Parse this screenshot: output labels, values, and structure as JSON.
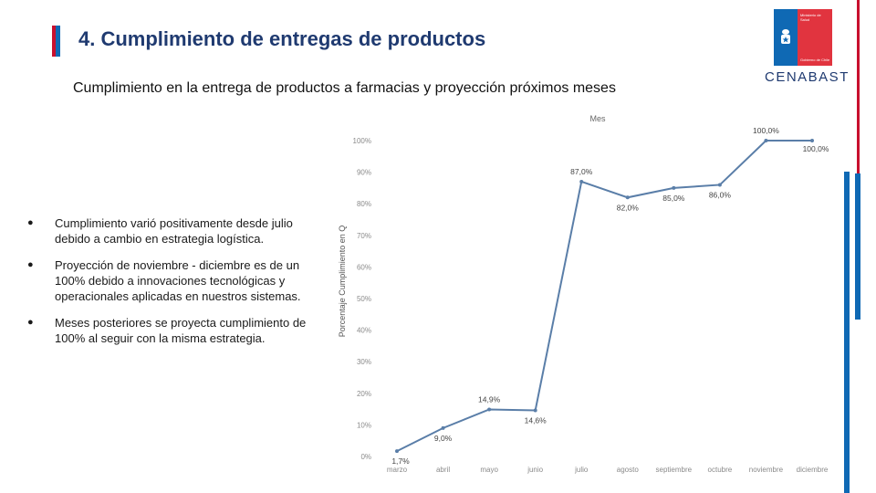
{
  "header": {
    "title": "4. Cumplimiento de entregas de productos",
    "subtitle": "Cumplimiento en la entrega de productos a farmacias y proyección próximos meses"
  },
  "logo": {
    "ministry_line1": "Ministerio de",
    "ministry_line2": "Salud",
    "government_text": "Gobierno de Chile",
    "name": "CENABAST"
  },
  "bullets": [
    "Cumplimiento varió positivamente desde julio debido a cambio en estrategia logística.",
    "Proyección de noviembre - diciembre es de un 100% debido a innovaciones tecnológicas y operacionales aplicadas en nuestros sistemas.",
    "Meses posteriores se proyecta cumplimiento de 100% al seguir con la misma estrategia."
  ],
  "bullet_symbol": "●",
  "colors": {
    "accent_red": "#c8102e",
    "accent_blue": "#0f69b4",
    "title_color": "#1f3a70",
    "line_color": "#5a7ea8"
  },
  "chart_data": {
    "type": "line",
    "title": "Mes",
    "xlabel": "",
    "ylabel": "Porcentaje Cumplimiento en Q",
    "categories": [
      "marzo",
      "abril",
      "mayo",
      "junio",
      "julio",
      "agosto",
      "septiembre",
      "octubre",
      "noviembre",
      "diciembre"
    ],
    "points": [
      {
        "x": 0,
        "value": 1.7,
        "label": "1,7%"
      },
      {
        "x": 1,
        "value": 9.0,
        "label": "9,0%"
      },
      {
        "x": 2,
        "value": 14.9,
        "label": "14,9%"
      },
      {
        "x": 3,
        "value": 14.6,
        "label": "14,6%"
      },
      {
        "x": 4,
        "value": 87.0,
        "label": "87,0%"
      },
      {
        "x": 5,
        "value": 82.0,
        "label": "82,0%"
      },
      {
        "x": 6,
        "value": 85.0,
        "label": "85,0%"
      },
      {
        "x": 7,
        "value": 86.0,
        "label": "86,0%"
      },
      {
        "x": 8,
        "value": 100.0,
        "label": "100,0%"
      },
      {
        "x": 9,
        "value": 100.0,
        "label": "100,0%"
      }
    ],
    "yticks": [
      "0%",
      "10%",
      "20%",
      "30%",
      "40%",
      "50%",
      "60%",
      "70%",
      "80%",
      "90%",
      "100%"
    ],
    "ylim": [
      0,
      100
    ],
    "grid": false
  }
}
